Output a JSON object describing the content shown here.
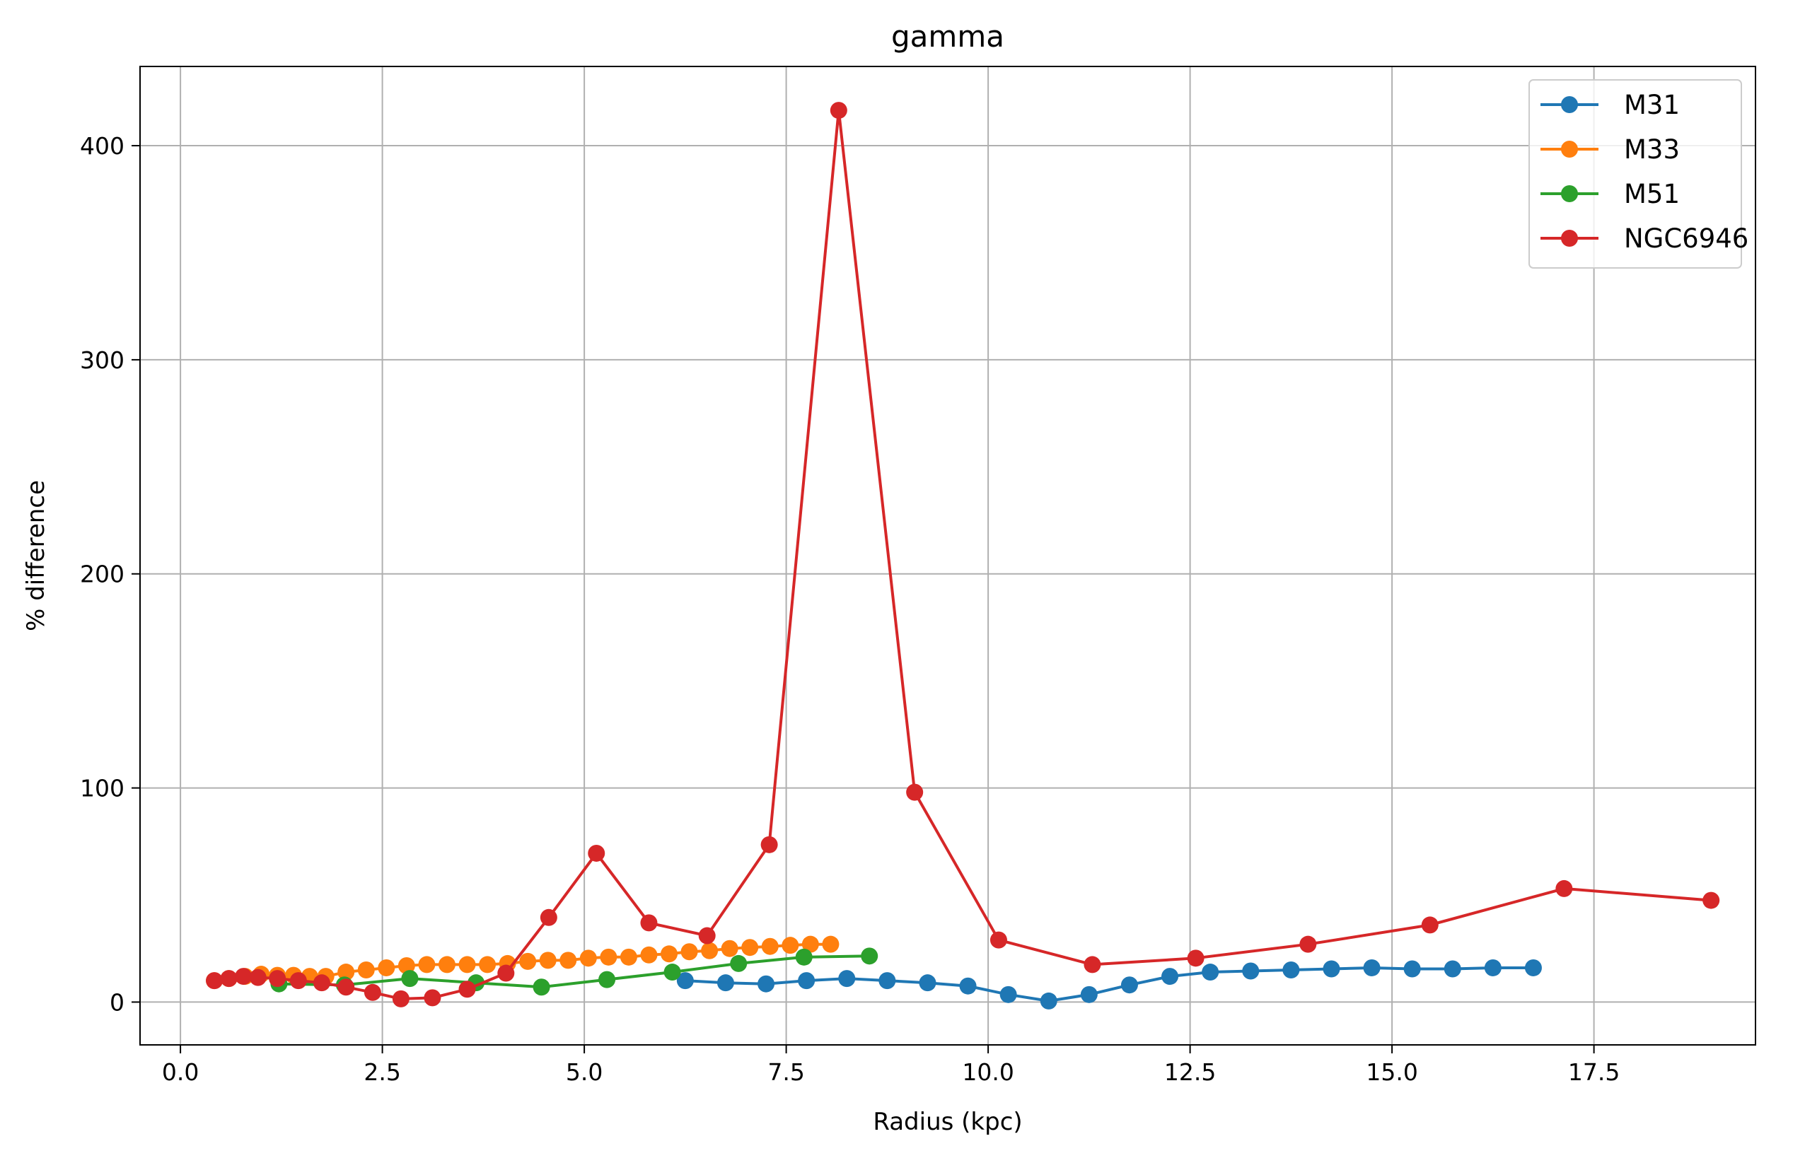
{
  "chart_data": {
    "type": "line",
    "title": "gamma",
    "xlabel": "Radius (kpc)",
    "ylabel": "% difference",
    "xlim": [
      -0.5,
      19.5
    ],
    "ylim": [
      -20,
      437
    ],
    "xticks": [
      0.0,
      2.5,
      5.0,
      7.5,
      10.0,
      12.5,
      15.0,
      17.5
    ],
    "xtick_labels": [
      "0.0",
      "2.5",
      "5.0",
      "7.5",
      "10.0",
      "12.5",
      "15.0",
      "17.5"
    ],
    "yticks": [
      0,
      100,
      200,
      300,
      400
    ],
    "ytick_labels": [
      "0",
      "100",
      "200",
      "300",
      "400"
    ],
    "grid": true,
    "legend_position": "top-right",
    "markers": true,
    "series": [
      {
        "name": "M31",
        "color": "#1f77b4",
        "x": [
          6.25,
          6.75,
          7.25,
          7.75,
          8.25,
          8.75,
          9.25,
          9.75,
          10.25,
          10.75,
          11.25,
          11.75,
          12.25,
          12.75,
          13.25,
          13.75,
          14.25,
          14.75,
          15.25,
          15.75,
          16.25,
          16.75
        ],
        "y": [
          10,
          9,
          8.5,
          10,
          11,
          10,
          9,
          7.5,
          3.5,
          0.5,
          3.5,
          8,
          12,
          14,
          14.5,
          15,
          15.5,
          16,
          15.5,
          15.5,
          16,
          16
        ]
      },
      {
        "name": "M33",
        "color": "#ff7f0e",
        "x": [
          0.42,
          0.6,
          0.8,
          1.0,
          1.2,
          1.4,
          1.6,
          1.8,
          2.05,
          2.3,
          2.55,
          2.8,
          3.05,
          3.3,
          3.55,
          3.8,
          4.05,
          4.3,
          4.55,
          4.8,
          5.05,
          5.3,
          5.55,
          5.8,
          6.05,
          6.3,
          6.55,
          6.8,
          7.05,
          7.3,
          7.55,
          7.8,
          8.05
        ],
        "y": [
          10,
          11,
          12,
          13,
          12.5,
          12.5,
          12,
          12,
          14,
          15,
          16,
          17,
          17.5,
          17.5,
          17.5,
          17.5,
          18,
          19,
          19.5,
          19.5,
          20.5,
          21,
          21,
          22,
          22.5,
          23.5,
          24,
          25,
          25.5,
          26,
          26.5,
          27,
          27
        ]
      },
      {
        "name": "M51",
        "color": "#2ca02c",
        "x": [
          1.22,
          2.03,
          2.84,
          3.66,
          4.47,
          5.28,
          6.09,
          6.91,
          7.72,
          8.53
        ],
        "y": [
          8.5,
          8,
          11,
          9,
          7,
          10.5,
          14,
          18,
          21,
          21.5
        ]
      },
      {
        "name": "NGC6946",
        "color": "#d62728",
        "x": [
          0.42,
          0.6,
          0.78,
          0.96,
          1.2,
          1.46,
          1.75,
          2.05,
          2.38,
          2.73,
          3.12,
          3.55,
          4.03,
          4.56,
          5.15,
          5.8,
          6.52,
          7.29,
          8.15,
          9.09,
          10.13,
          11.29,
          12.57,
          13.96,
          15.47,
          17.13,
          18.95
        ],
        "y": [
          10,
          11,
          12,
          11.5,
          11,
          10,
          9,
          7,
          4.5,
          1.5,
          2,
          6,
          13.5,
          39.5,
          69.5,
          37,
          31,
          73.5,
          416.5,
          98,
          29,
          17.5,
          20.5,
          27,
          36,
          53,
          47.5
        ]
      }
    ]
  }
}
